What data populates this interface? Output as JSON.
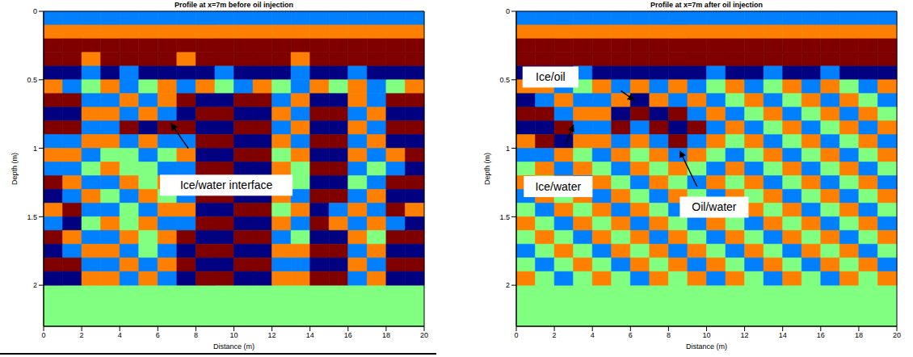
{
  "chart_data": [
    {
      "type": "heatmap",
      "title": "Profile at x=7m before oil injection",
      "x_label": "Distance (m)",
      "y_label": "Depth (m)",
      "xlim": [
        0,
        20
      ],
      "ylim": [
        0,
        2.3
      ],
      "xticks": [
        0,
        2,
        4,
        6,
        8,
        10,
        12,
        14,
        16,
        18,
        20
      ],
      "yticks": [
        0,
        0.5,
        1,
        1.5,
        2
      ],
      "x_edges": [
        0,
        1,
        2,
        3,
        4,
        5,
        6,
        7,
        8,
        9,
        10,
        11,
        12,
        13,
        14,
        15,
        16,
        17,
        18,
        19,
        20
      ],
      "y_edges": [
        0,
        0.1,
        0.2,
        0.3,
        0.4,
        0.5,
        0.6,
        0.7,
        0.8,
        0.9,
        1,
        1.1,
        1.2,
        1.3,
        1.4,
        1.5,
        1.6,
        1.7,
        1.8,
        1.9,
        2
      ],
      "cells": [
        [
          -1,
          -1,
          -1,
          -1,
          -1,
          -1,
          -1,
          -1,
          -1,
          -1,
          -1,
          -1,
          -1,
          -1,
          -1,
          -1,
          -1,
          -1,
          -1,
          -1
        ],
        [
          1,
          1,
          1,
          1,
          1,
          1,
          1,
          1,
          1,
          1,
          1,
          1,
          1,
          1,
          1,
          1,
          1,
          1,
          1,
          1
        ],
        [
          2,
          2,
          2,
          2,
          2,
          2,
          2,
          2,
          2,
          2,
          2,
          2,
          2,
          2,
          2,
          2,
          2,
          2,
          2,
          2
        ],
        [
          2,
          2,
          1,
          2,
          2,
          2,
          2,
          1,
          2,
          2,
          2,
          2,
          2,
          1,
          2,
          2,
          2,
          2,
          2,
          2
        ],
        [
          -2,
          -2,
          -1,
          -2,
          -1,
          -2,
          -2,
          -2,
          -2,
          -1,
          -2,
          -2,
          -2,
          -1,
          -2,
          -2,
          -1,
          -2,
          -2,
          -2
        ],
        [
          1,
          -1,
          0,
          1,
          -1,
          0,
          1,
          -1,
          1,
          0,
          -1,
          1,
          0,
          -1,
          1,
          0,
          1,
          -1,
          0,
          1
        ],
        [
          2,
          2,
          -1,
          -1,
          1,
          -1,
          1,
          2,
          -2,
          -2,
          2,
          2,
          -1,
          1,
          -2,
          -2,
          1,
          -1,
          2,
          2
        ],
        [
          -2,
          -2,
          1,
          1,
          -1,
          1,
          -1,
          -2,
          2,
          2,
          -2,
          -2,
          1,
          -1,
          2,
          2,
          -1,
          1,
          -2,
          -2
        ],
        [
          2,
          2,
          -1,
          -1,
          2,
          -2,
          2,
          2,
          -2,
          -2,
          2,
          2,
          -1,
          1,
          -2,
          -2,
          1,
          -1,
          2,
          2
        ],
        [
          -1,
          -1,
          1,
          1,
          -1,
          1,
          -1,
          -1,
          2,
          2,
          -2,
          -2,
          1,
          -1,
          2,
          2,
          -1,
          1,
          -2,
          -2
        ],
        [
          1,
          1,
          -1,
          0,
          0,
          -1,
          0,
          1,
          -2,
          -2,
          2,
          2,
          0,
          1,
          -2,
          -2,
          1,
          -1,
          1,
          2
        ],
        [
          -1,
          -1,
          0,
          1,
          0,
          0,
          -1,
          -1,
          2,
          2,
          -2,
          -2,
          1,
          0,
          2,
          2,
          -1,
          0,
          -1,
          -2
        ],
        [
          2,
          1,
          -1,
          -1,
          1,
          0,
          1,
          1,
          -2,
          -2,
          2,
          2,
          -1,
          0,
          -2,
          -2,
          0,
          -1,
          2,
          2
        ],
        [
          -2,
          -1,
          1,
          0,
          -1,
          1,
          0,
          -1,
          2,
          2,
          -2,
          -2,
          1,
          -1,
          2,
          2,
          -1,
          1,
          -2,
          -2
        ],
        [
          1,
          2,
          -1,
          -1,
          0,
          -1,
          1,
          1,
          -2,
          -2,
          2,
          2,
          0,
          1,
          -2,
          -1,
          1,
          -1,
          2,
          1
        ],
        [
          -1,
          -2,
          0,
          1,
          0,
          1,
          -1,
          -1,
          2,
          2,
          -2,
          -2,
          1,
          -1,
          2,
          1,
          -1,
          1,
          -1,
          -2
        ],
        [
          2,
          1,
          -1,
          -1,
          1,
          0,
          1,
          2,
          -2,
          -2,
          2,
          2,
          -1,
          0,
          -2,
          -2,
          1,
          0,
          2,
          2
        ],
        [
          -2,
          -1,
          1,
          1,
          -1,
          0,
          -1,
          -2,
          2,
          2,
          -2,
          -2,
          1,
          1,
          2,
          2,
          -1,
          1,
          -2,
          -2
        ],
        [
          2,
          2,
          -1,
          -1,
          1,
          -1,
          1,
          2,
          -2,
          -2,
          2,
          2,
          -1,
          -1,
          -2,
          -2,
          1,
          -1,
          2,
          2
        ],
        [
          -2,
          -2,
          1,
          1,
          -1,
          1,
          -1,
          -2,
          2,
          2,
          -2,
          -2,
          1,
          1,
          2,
          2,
          -1,
          1,
          -2,
          -2
        ]
      ],
      "annotations": [
        {
          "text": "Ice/water interface",
          "x": 9.6,
          "y": 1.27
        }
      ],
      "arrows": [
        {
          "from": [
            7.6,
            1.0
          ],
          "to": [
            6.7,
            0.82
          ]
        }
      ]
    },
    {
      "type": "heatmap",
      "title": "Profile at x=7m after oil injection",
      "x_label": "Distance (m)",
      "y_label": "Depth (m)",
      "xlim": [
        0,
        20
      ],
      "ylim": [
        0,
        2.3
      ],
      "xticks": [
        0,
        2,
        4,
        6,
        8,
        10,
        12,
        14,
        16,
        18,
        20
      ],
      "yticks": [
        0,
        0.5,
        1,
        1.5,
        2
      ],
      "x_edges": [
        0,
        1,
        2,
        3,
        4,
        5,
        6,
        7,
        8,
        9,
        10,
        11,
        12,
        13,
        14,
        15,
        16,
        17,
        18,
        19,
        20
      ],
      "y_edges": [
        0,
        0.1,
        0.2,
        0.3,
        0.4,
        0.5,
        0.6,
        0.7,
        0.8,
        0.9,
        1,
        1.1,
        1.2,
        1.3,
        1.4,
        1.5,
        1.6,
        1.7,
        1.8,
        1.9,
        2
      ],
      "cells": [
        [
          -1,
          -1,
          -1,
          -1,
          -1,
          -1,
          -1,
          -1,
          -1,
          -1,
          -1,
          -1,
          -1,
          -1,
          -1,
          -1,
          -1,
          -1,
          -1,
          -1
        ],
        [
          1,
          1,
          1,
          1,
          1,
          1,
          1,
          1,
          1,
          1,
          1,
          1,
          1,
          1,
          1,
          1,
          1,
          1,
          1,
          1
        ],
        [
          2,
          2,
          2,
          2,
          2,
          2,
          2,
          2,
          2,
          2,
          2,
          2,
          2,
          2,
          2,
          2,
          2,
          2,
          2,
          2
        ],
        [
          2,
          2,
          2,
          2,
          2,
          2,
          2,
          2,
          2,
          2,
          2,
          2,
          2,
          2,
          2,
          2,
          2,
          2,
          2,
          2
        ],
        [
          -2,
          -2,
          -2,
          -1,
          -2,
          -2,
          -2,
          -2,
          -2,
          -2,
          -1,
          -2,
          -2,
          -1,
          -2,
          -2,
          -1,
          -2,
          -2,
          -2
        ],
        [
          1,
          1,
          -1,
          0,
          1,
          -1,
          1,
          -1,
          1,
          -1,
          0,
          1,
          -1,
          0,
          1,
          -1,
          1,
          0,
          -1,
          1
        ],
        [
          -2,
          -1,
          1,
          -1,
          -1,
          1,
          -2,
          1,
          -1,
          1,
          -1,
          0,
          1,
          -1,
          0,
          1,
          -1,
          1,
          0,
          -1
        ],
        [
          2,
          2,
          -1,
          1,
          1,
          -2,
          2,
          -2,
          2,
          -1,
          1,
          -1,
          0,
          1,
          -1,
          0,
          1,
          -1,
          1,
          0
        ],
        [
          -2,
          -2,
          2,
          -1,
          -1,
          2,
          -1,
          2,
          -2,
          2,
          -1,
          1,
          -1,
          0,
          1,
          -1,
          0,
          1,
          -1,
          1
        ],
        [
          1,
          2,
          -2,
          1,
          1,
          -1,
          1,
          -1,
          2,
          -1,
          1,
          0,
          1,
          -1,
          0,
          1,
          -1,
          0,
          1,
          -1
        ],
        [
          -1,
          -1,
          1,
          0,
          -1,
          1,
          0,
          1,
          -1,
          1,
          0,
          -1,
          0,
          1,
          -1,
          0,
          1,
          -1,
          0,
          1
        ],
        [
          0,
          1,
          -1,
          1,
          0,
          -1,
          1,
          0,
          1,
          0,
          -1,
          1,
          -1,
          0,
          1,
          -1,
          0,
          1,
          -1,
          0
        ],
        [
          1,
          0,
          1,
          -1,
          1,
          0,
          -1,
          1,
          0,
          -1,
          1,
          0,
          1,
          -1,
          0,
          1,
          -1,
          0,
          1,
          -1
        ],
        [
          -1,
          1,
          0,
          1,
          -1,
          1,
          0,
          -1,
          1,
          0,
          -1,
          1,
          0,
          1,
          -1,
          0,
          1,
          -1,
          0,
          1
        ],
        [
          0,
          -1,
          1,
          0,
          1,
          -1,
          1,
          0,
          -1,
          1,
          0,
          -1,
          1,
          0,
          1,
          -1,
          0,
          1,
          -1,
          0
        ],
        [
          1,
          0,
          -1,
          1,
          0,
          1,
          -1,
          1,
          0,
          -1,
          1,
          0,
          -1,
          1,
          0,
          1,
          -1,
          0,
          1,
          -1
        ],
        [
          0,
          1,
          0,
          -1,
          1,
          0,
          1,
          -1,
          1,
          0,
          -1,
          1,
          0,
          -1,
          1,
          0,
          1,
          -1,
          0,
          1
        ],
        [
          -1,
          0,
          1,
          0,
          -1,
          1,
          0,
          1,
          -1,
          1,
          0,
          -1,
          1,
          0,
          -1,
          1,
          0,
          1,
          -1,
          0
        ],
        [
          0,
          -1,
          0,
          1,
          0,
          -1,
          1,
          0,
          1,
          -1,
          1,
          0,
          -1,
          1,
          0,
          -1,
          1,
          0,
          1,
          -1
        ],
        [
          1,
          0,
          -1,
          0,
          1,
          0,
          -1,
          1,
          0,
          1,
          -1,
          1,
          0,
          -1,
          1,
          0,
          -1,
          1,
          0,
          1
        ]
      ],
      "annotations": [
        {
          "text": "Ice/oil",
          "x": 1.8,
          "y": 0.48
        },
        {
          "text": "Ice/water",
          "x": 2.2,
          "y": 1.28
        },
        {
          "text": "Oil/water",
          "x": 10.4,
          "y": 1.43
        }
      ],
      "arrows": [
        {
          "from": [
            5.5,
            0.58
          ],
          "to": [
            6.2,
            0.65
          ]
        },
        {
          "from": [
            2.6,
            0.97
          ],
          "to": [
            3.0,
            0.83
          ]
        },
        {
          "from": [
            9.5,
            1.28
          ],
          "to": [
            8.6,
            1.02
          ]
        }
      ]
    }
  ]
}
